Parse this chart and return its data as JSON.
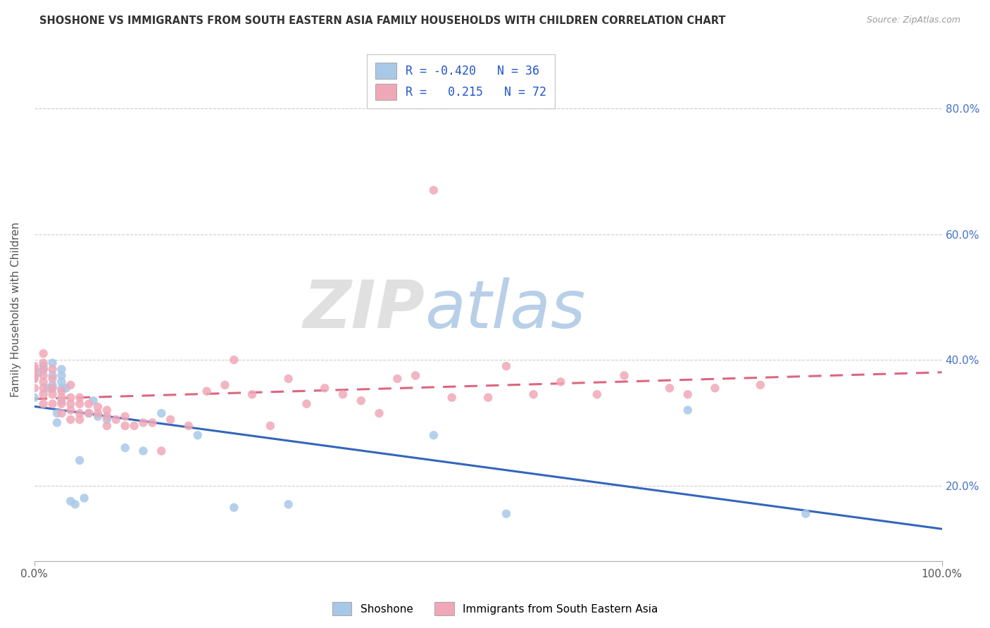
{
  "title": "SHOSHONE VS IMMIGRANTS FROM SOUTH EASTERN ASIA FAMILY HOUSEHOLDS WITH CHILDREN CORRELATION CHART",
  "source": "Source: ZipAtlas.com",
  "ylabel": "Family Households with Children",
  "legend_blue_r": "-0.420",
  "legend_blue_n": "36",
  "legend_pink_r": "0.215",
  "legend_pink_n": "72",
  "blue_color": "#a8c8e8",
  "pink_color": "#f0a8b8",
  "blue_line_color": "#3366bb",
  "pink_line_color": "#dd6680",
  "xlim": [
    0.0,
    1.0
  ],
  "ylim": [
    0.08,
    0.88
  ],
  "yticks": [
    0.2,
    0.4,
    0.6,
    0.8
  ],
  "ytick_labels": [
    "20.0%",
    "40.0%",
    "60.0%",
    "80.0%"
  ],
  "blue_scatter_x": [
    0.0,
    0.0,
    0.005,
    0.01,
    0.01,
    0.015,
    0.02,
    0.02,
    0.02,
    0.02,
    0.025,
    0.025,
    0.03,
    0.03,
    0.03,
    0.03,
    0.03,
    0.035,
    0.04,
    0.045,
    0.05,
    0.055,
    0.06,
    0.065,
    0.07,
    0.08,
    0.1,
    0.12,
    0.14,
    0.18,
    0.22,
    0.28,
    0.44,
    0.52,
    0.72,
    0.85
  ],
  "blue_scatter_y": [
    0.34,
    0.37,
    0.38,
    0.385,
    0.39,
    0.355,
    0.355,
    0.36,
    0.375,
    0.395,
    0.3,
    0.315,
    0.335,
    0.355,
    0.365,
    0.375,
    0.385,
    0.355,
    0.175,
    0.17,
    0.24,
    0.18,
    0.315,
    0.335,
    0.31,
    0.305,
    0.26,
    0.255,
    0.315,
    0.28,
    0.165,
    0.17,
    0.28,
    0.155,
    0.32,
    0.155
  ],
  "pink_scatter_x": [
    0.0,
    0.0,
    0.0,
    0.0,
    0.0,
    0.01,
    0.01,
    0.01,
    0.01,
    0.01,
    0.01,
    0.01,
    0.01,
    0.02,
    0.02,
    0.02,
    0.02,
    0.02,
    0.03,
    0.03,
    0.03,
    0.03,
    0.04,
    0.04,
    0.04,
    0.04,
    0.04,
    0.05,
    0.05,
    0.05,
    0.05,
    0.06,
    0.06,
    0.07,
    0.07,
    0.08,
    0.08,
    0.08,
    0.09,
    0.1,
    0.1,
    0.11,
    0.12,
    0.13,
    0.14,
    0.15,
    0.17,
    0.19,
    0.21,
    0.22,
    0.24,
    0.26,
    0.28,
    0.3,
    0.32,
    0.34,
    0.36,
    0.38,
    0.4,
    0.42,
    0.44,
    0.46,
    0.5,
    0.52,
    0.55,
    0.58,
    0.62,
    0.65,
    0.7,
    0.72,
    0.75,
    0.8
  ],
  "pink_scatter_y": [
    0.375,
    0.39,
    0.385,
    0.37,
    0.355,
    0.33,
    0.345,
    0.355,
    0.365,
    0.375,
    0.385,
    0.395,
    0.41,
    0.33,
    0.345,
    0.355,
    0.37,
    0.385,
    0.315,
    0.33,
    0.34,
    0.35,
    0.305,
    0.32,
    0.33,
    0.34,
    0.36,
    0.305,
    0.315,
    0.33,
    0.34,
    0.315,
    0.33,
    0.315,
    0.325,
    0.295,
    0.31,
    0.32,
    0.305,
    0.295,
    0.31,
    0.295,
    0.3,
    0.3,
    0.255,
    0.305,
    0.295,
    0.35,
    0.36,
    0.4,
    0.345,
    0.295,
    0.37,
    0.33,
    0.355,
    0.345,
    0.335,
    0.315,
    0.37,
    0.375,
    0.67,
    0.34,
    0.34,
    0.39,
    0.345,
    0.365,
    0.345,
    0.375,
    0.355,
    0.345,
    0.355,
    0.36
  ],
  "blue_line_x0": 0.0,
  "blue_line_x1": 1.0,
  "pink_line_x0": 0.0,
  "pink_line_x1": 1.0
}
